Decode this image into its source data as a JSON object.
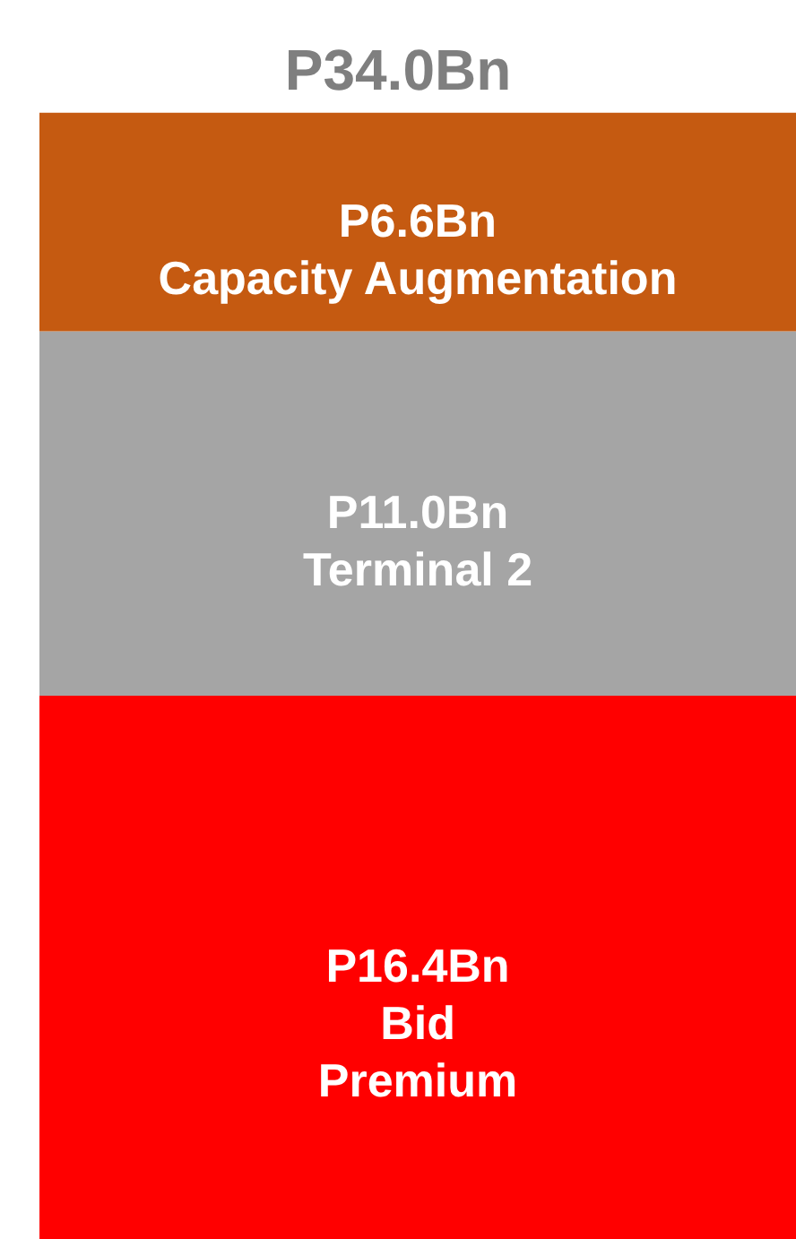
{
  "chart_data": {
    "type": "bar",
    "stacked": true,
    "legend": false,
    "categories": [
      null
    ],
    "totals": [
      "P34.0Bn"
    ],
    "series": [
      {
        "name": "Bid\nPremium",
        "color": "#ff0000",
        "values": [
          16.4
        ],
        "value_labels": [
          "P16.4Bn"
        ]
      },
      {
        "name": "Terminal 2",
        "color": "#a5a5a5",
        "values": [
          11.0
        ],
        "value_labels": [
          "P11.0Bn"
        ]
      },
      {
        "name": "Capacity Augmentation",
        "color": "#c55a11",
        "values": [
          6.6
        ],
        "value_labels": [
          "P6.6Bn"
        ]
      }
    ]
  }
}
